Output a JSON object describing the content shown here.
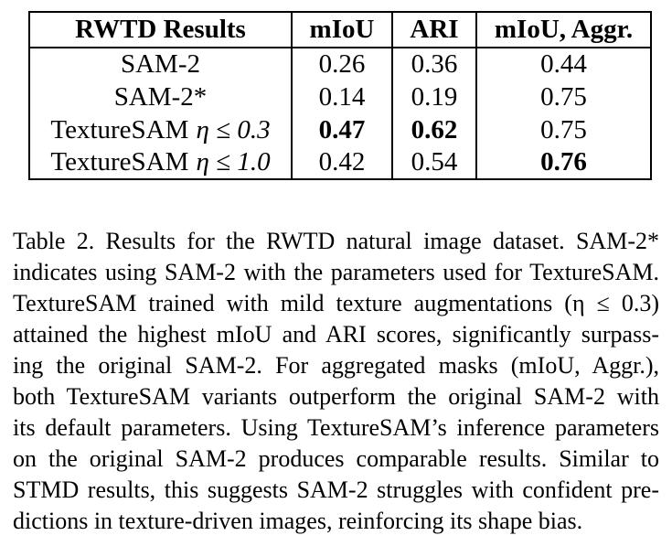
{
  "colors": {
    "background": "#ffffff",
    "text": "#000000",
    "border": "#000000"
  },
  "table": {
    "headers": [
      "RWTD Results",
      "mIoU",
      "ARI",
      "mIoU, Aggr."
    ],
    "rows": [
      {
        "label": "SAM-2",
        "miou": "0.26",
        "ari": "0.36",
        "aggr": "0.44"
      },
      {
        "label": "SAM-2*",
        "miou": "0.14",
        "ari": "0.19",
        "aggr": "0.75"
      },
      {
        "label": "TextureSAM",
        "label_math": "η ≤ 0.3",
        "miou": "0.47",
        "ari": "0.62",
        "aggr": "0.75"
      },
      {
        "label": "TextureSAM",
        "label_math": "η ≤ 1.0",
        "miou": "0.42",
        "ari": "0.54",
        "aggr": "0.76"
      }
    ],
    "bold_cells_note": "row 3: mIoU and ARI bold; row 4: mIoU, Aggr. bold"
  },
  "caption": {
    "label": "Table 2.",
    "lines": [
      "Table 2.  Results for the RWTD natural image dataset.  SAM-2*",
      "indicates using SAM-2 with the parameters used for TextureSAM.",
      "TextureSAM trained with mild texture augmentations (η ≤ 0.3)",
      "attained the highest mIoU and ARI scores, significantly surpass-",
      "ing the original SAM-2.  For aggregated masks (mIoU, Aggr.),",
      "both TextureSAM variants outperform the original SAM-2 with",
      "its default parameters. Using TextureSAM’s inference parameters",
      "on the original SAM-2 produces comparable results.  Similar to",
      "STMD results, this suggests SAM-2 struggles with confident pre-",
      "dictions in texture-driven images, reinforcing its shape bias."
    ]
  }
}
